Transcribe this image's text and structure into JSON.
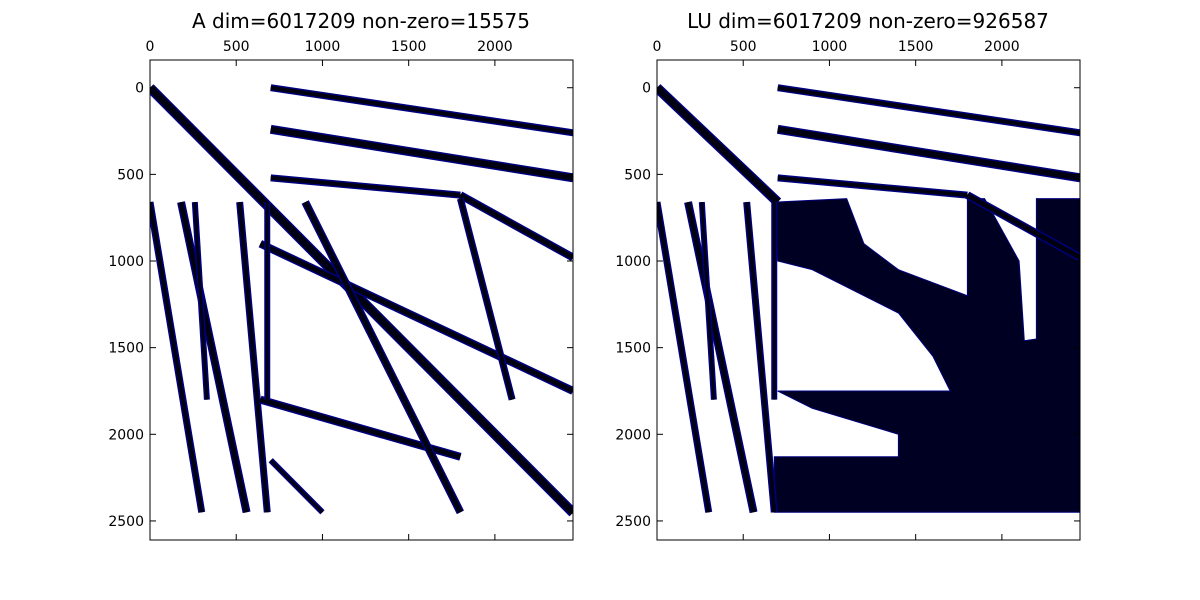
{
  "chart_data": [
    {
      "type": "heatmap",
      "subtype": "sparsity-pattern",
      "title": "A dim=6017209 non-zero=15575",
      "xlim": [
        0,
        2453
      ],
      "ylim": [
        2610,
        -160
      ],
      "xticks": [
        0,
        500,
        1000,
        1500,
        2000
      ],
      "yticks": [
        0,
        500,
        1000,
        1500,
        2000,
        2500
      ],
      "grid": false,
      "marker_color": "#00007f",
      "bands": [
        {
          "from": [
            0,
            0
          ],
          "to": [
            2453,
            2453
          ],
          "width": 8
        },
        {
          "from": [
            700,
            0
          ],
          "to": [
            2453,
            260
          ],
          "width": 5
        },
        {
          "from": [
            700,
            240
          ],
          "to": [
            2453,
            520
          ],
          "width": 7
        },
        {
          "from": [
            700,
            520
          ],
          "to": [
            1800,
            620
          ],
          "width": 5
        },
        {
          "from": [
            1800,
            620
          ],
          "to": [
            2453,
            980
          ],
          "width": 6
        },
        {
          "from": [
            0,
            660
          ],
          "to": [
            300,
            2450
          ],
          "width": 5
        },
        {
          "from": [
            180,
            660
          ],
          "to": [
            560,
            2450
          ],
          "width": 6
        },
        {
          "from": [
            260,
            660
          ],
          "to": [
            330,
            1800
          ],
          "width": 4
        },
        {
          "from": [
            520,
            660
          ],
          "to": [
            680,
            2450
          ],
          "width": 5
        },
        {
          "from": [
            640,
            900
          ],
          "to": [
            2453,
            1750
          ],
          "width": 6
        },
        {
          "from": [
            640,
            1800
          ],
          "to": [
            1800,
            2130
          ],
          "width": 6
        },
        {
          "from": [
            900,
            660
          ],
          "to": [
            1800,
            2450
          ],
          "width": 6
        },
        {
          "from": [
            1800,
            640
          ],
          "to": [
            2100,
            1800
          ],
          "width": 5
        },
        {
          "from": [
            680,
            1800
          ],
          "to": [
            680,
            660
          ],
          "width": 4
        },
        {
          "from": [
            700,
            2150
          ],
          "to": [
            1000,
            2450
          ],
          "width": 4
        }
      ],
      "fills": []
    },
    {
      "type": "heatmap",
      "subtype": "sparsity-pattern",
      "title": "LU dim=6017209 non-zero=926587",
      "xlim": [
        0,
        2453
      ],
      "ylim": [
        2610,
        -160
      ],
      "xticks": [
        0,
        500,
        1000,
        1500,
        2000
      ],
      "yticks": [
        0,
        500,
        1000,
        1500,
        2000,
        2500
      ],
      "grid": false,
      "marker_color": "#00007f",
      "bands": [
        {
          "from": [
            0,
            0
          ],
          "to": [
            700,
            660
          ],
          "width": 8
        },
        {
          "from": [
            700,
            0
          ],
          "to": [
            2453,
            260
          ],
          "width": 5
        },
        {
          "from": [
            700,
            240
          ],
          "to": [
            2453,
            520
          ],
          "width": 7
        },
        {
          "from": [
            700,
            520
          ],
          "to": [
            1800,
            620
          ],
          "width": 5
        },
        {
          "from": [
            1800,
            620
          ],
          "to": [
            2453,
            980
          ],
          "width": 6
        },
        {
          "from": [
            0,
            660
          ],
          "to": [
            300,
            2450
          ],
          "width": 5
        },
        {
          "from": [
            180,
            660
          ],
          "to": [
            560,
            2450
          ],
          "width": 6
        },
        {
          "from": [
            260,
            660
          ],
          "to": [
            330,
            1800
          ],
          "width": 4
        },
        {
          "from": [
            520,
            660
          ],
          "to": [
            680,
            2450
          ],
          "width": 5
        },
        {
          "from": [
            680,
            1800
          ],
          "to": [
            680,
            660
          ],
          "width": 4
        }
      ],
      "fills": [
        [
          [
            680,
            660
          ],
          [
            1100,
            640
          ],
          [
            1200,
            900
          ],
          [
            1400,
            1050
          ],
          [
            1800,
            1200
          ],
          [
            1800,
            640
          ],
          [
            1900,
            640
          ],
          [
            2100,
            1000
          ],
          [
            2130,
            1460
          ],
          [
            2200,
            1450
          ],
          [
            2200,
            640
          ],
          [
            2453,
            640
          ],
          [
            2453,
            2450
          ],
          [
            680,
            2450
          ],
          [
            680,
            2130
          ],
          [
            1400,
            2130
          ],
          [
            1400,
            2000
          ],
          [
            900,
            1850
          ],
          [
            700,
            1750
          ],
          [
            1700,
            1750
          ],
          [
            1600,
            1550
          ],
          [
            1400,
            1300
          ],
          [
            1000,
            1100
          ],
          [
            900,
            1050
          ],
          [
            700,
            1000
          ]
        ]
      ]
    }
  ]
}
